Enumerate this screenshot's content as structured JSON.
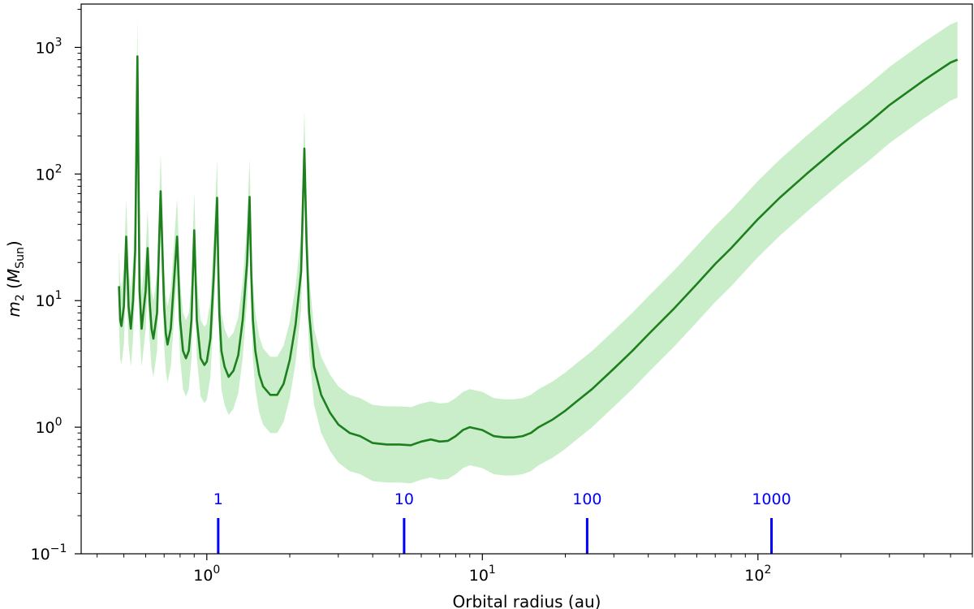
{
  "chart_data": {
    "type": "line",
    "xscale": "log",
    "yscale": "log",
    "xlim": [
      0.35,
      600
    ],
    "ylim": [
      0.1,
      2200
    ],
    "xlabel": "Orbital radius (au)",
    "ylabel": "m₂ (M_Sun)",
    "ylabel_parts": {
      "base": "m",
      "sub": "2",
      "unit_base": "M",
      "unit_sub": "Sun"
    },
    "grid": false,
    "x_ticks_major": [
      {
        "value": 1,
        "base": "10",
        "exp": "0"
      },
      {
        "value": 10,
        "base": "10",
        "exp": "1"
      },
      {
        "value": 100,
        "base": "10",
        "exp": "2"
      }
    ],
    "y_ticks_major": [
      {
        "value": 0.1,
        "base": "10",
        "exp": "−1"
      },
      {
        "value": 1,
        "base": "10",
        "exp": "0"
      },
      {
        "value": 10,
        "base": "10",
        "exp": "1"
      },
      {
        "value": 100,
        "base": "10",
        "exp": "2"
      },
      {
        "value": 1000,
        "base": "10",
        "exp": "3"
      }
    ],
    "series": [
      {
        "color": "#1e7f1e",
        "band_color": "#b7e8b7",
        "x": [
          0.48,
          0.485,
          0.49,
          0.5,
          0.51,
          0.52,
          0.53,
          0.54,
          0.55,
          0.56,
          0.57,
          0.58,
          0.6,
          0.61,
          0.62,
          0.63,
          0.64,
          0.66,
          0.68,
          0.7,
          0.71,
          0.72,
          0.74,
          0.76,
          0.78,
          0.8,
          0.82,
          0.84,
          0.86,
          0.88,
          0.9,
          0.92,
          0.95,
          0.98,
          1.0,
          1.03,
          1.06,
          1.09,
          1.1,
          1.11,
          1.13,
          1.16,
          1.2,
          1.25,
          1.3,
          1.35,
          1.4,
          1.43,
          1.45,
          1.47,
          1.5,
          1.55,
          1.6,
          1.7,
          1.8,
          1.9,
          2.0,
          2.1,
          2.2,
          2.26,
          2.3,
          2.35,
          2.45,
          2.6,
          2.8,
          3.0,
          3.3,
          3.6,
          4.0,
          4.5,
          5.0,
          5.5,
          6.0,
          6.5,
          7.0,
          7.5,
          8.0,
          8.5,
          9.0,
          10.0,
          11.0,
          12.0,
          13.0,
          14.0,
          15.0,
          16.0,
          18.0,
          20.0,
          22.0,
          25.0,
          30.0,
          35.0,
          40.0,
          50.0,
          60.0,
          70.0,
          80.0,
          100.0,
          120.0,
          150.0,
          200.0,
          250.0,
          300.0,
          400.0,
          500.0,
          530.0
        ],
        "y": [
          13,
          7,
          6.3,
          9,
          32,
          9,
          6,
          10,
          25,
          850,
          12,
          6,
          12,
          26,
          10,
          6,
          5,
          8,
          73,
          9,
          5.5,
          4.5,
          6,
          14,
          32,
          7,
          4,
          3.5,
          4,
          7,
          36,
          7,
          3.5,
          3.1,
          3.3,
          5,
          16,
          65,
          20,
          8,
          4,
          3,
          2.5,
          2.8,
          3.7,
          7,
          20,
          66,
          16,
          7,
          4,
          2.6,
          2.1,
          1.8,
          1.8,
          2.2,
          3.4,
          6.5,
          17,
          159,
          30,
          8,
          3,
          1.8,
          1.3,
          1.05,
          0.9,
          0.85,
          0.75,
          0.73,
          0.73,
          0.72,
          0.77,
          0.8,
          0.77,
          0.78,
          0.85,
          0.95,
          1.0,
          0.95,
          0.85,
          0.83,
          0.83,
          0.85,
          0.9,
          1.0,
          1.15,
          1.35,
          1.6,
          2.0,
          2.9,
          4.0,
          5.4,
          8.8,
          13.5,
          19.5,
          26,
          44,
          65,
          100,
          170,
          250,
          350,
          550,
          760,
          800
        ]
      }
    ],
    "band_factor": 2.0,
    "annotations": [
      {
        "x": 1.1,
        "label": "1"
      },
      {
        "x": 5.2,
        "label": "10"
      },
      {
        "x": 24,
        "label": "100"
      },
      {
        "x": 112,
        "label": "1000"
      }
    ],
    "annotation_color": "#0000ff"
  }
}
